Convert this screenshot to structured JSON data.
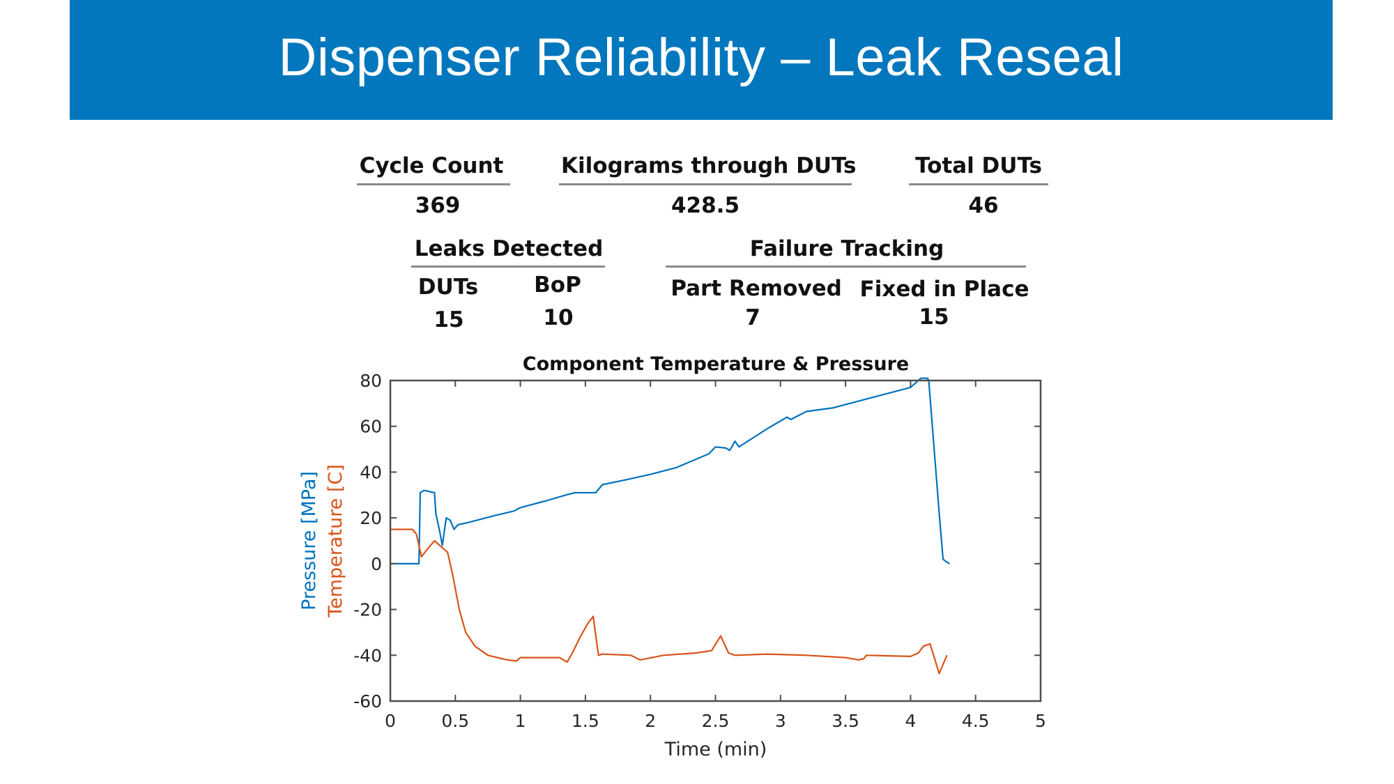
{
  "slide": {
    "title": "Dispenser Reliability – Leak Reseal"
  },
  "stats": {
    "cycle_count": {
      "label": "Cycle Count",
      "value": "369"
    },
    "kilograms": {
      "label": "Kilograms through DUTs",
      "value": "428.5"
    },
    "total_duts": {
      "label": "Total DUTs",
      "value": "46"
    },
    "leaks_detected": {
      "label": "Leaks Detected",
      "duts_label": "DUTs",
      "duts_value": "15",
      "bop_label": "BoP",
      "bop_value": "10"
    },
    "failure_tracking": {
      "label": "Failure Tracking",
      "removed_label": "Part Removed",
      "removed_value": "7",
      "fixed_label": "Fixed in Place",
      "fixed_value": "15"
    }
  },
  "colors": {
    "title_band": "#0277bd",
    "pressure": "#0072bd",
    "temperature": "#d95319",
    "axis": "#4d4d4d"
  },
  "chart_data": {
    "type": "line",
    "title": "Component Temperature & Pressure",
    "xlabel": "Time (min)",
    "ylabel_parts": [
      "Pressure [MPa]",
      "Temperature [C]"
    ],
    "xlim": [
      0,
      5
    ],
    "ylim": [
      -60,
      80
    ],
    "xticks": [
      0,
      0.5,
      1,
      1.5,
      2,
      2.5,
      3,
      3.5,
      4,
      4.5,
      5
    ],
    "xtick_labels": [
      "0",
      "0.5",
      "1",
      "1.5",
      "2",
      "2.5",
      "3",
      "3.5",
      "4",
      "4.5",
      "5"
    ],
    "yticks": [
      80,
      60,
      40,
      20,
      0,
      -20,
      -40,
      -60
    ],
    "ytick_labels": [
      "80",
      "60",
      "40",
      "20",
      "0",
      "-20",
      "-40",
      "-60"
    ],
    "grid": false,
    "box": true,
    "series": [
      {
        "name": "Pressure [MPa]",
        "color": "#0072bd",
        "points": [
          [
            0,
            0
          ],
          [
            0.22,
            0
          ],
          [
            0.23,
            31
          ],
          [
            0.26,
            32
          ],
          [
            0.34,
            31
          ],
          [
            0.35,
            22
          ],
          [
            0.38,
            14
          ],
          [
            0.4,
            8
          ],
          [
            0.43,
            20
          ],
          [
            0.46,
            19
          ],
          [
            0.49,
            15
          ],
          [
            0.52,
            17
          ],
          [
            0.6,
            18
          ],
          [
            0.8,
            21
          ],
          [
            0.95,
            23
          ],
          [
            1.0,
            24.5
          ],
          [
            1.2,
            27.5
          ],
          [
            1.35,
            30
          ],
          [
            1.42,
            31
          ],
          [
            1.58,
            31
          ],
          [
            1.63,
            34.5
          ],
          [
            1.8,
            36.5
          ],
          [
            2.0,
            39
          ],
          [
            2.2,
            42
          ],
          [
            2.45,
            48
          ],
          [
            2.5,
            51
          ],
          [
            2.58,
            50.5
          ],
          [
            2.61,
            49.5
          ],
          [
            2.65,
            53.5
          ],
          [
            2.68,
            51
          ],
          [
            2.9,
            59
          ],
          [
            3.05,
            64
          ],
          [
            3.08,
            63
          ],
          [
            3.2,
            66.5
          ],
          [
            3.4,
            68
          ],
          [
            3.6,
            71
          ],
          [
            3.8,
            74
          ],
          [
            4.0,
            77
          ],
          [
            4.04,
            79
          ],
          [
            4.08,
            81
          ],
          [
            4.13,
            81
          ],
          [
            4.14,
            80
          ],
          [
            4.22,
            22
          ],
          [
            4.25,
            2
          ],
          [
            4.27,
            1
          ],
          [
            4.3,
            0
          ]
        ]
      },
      {
        "name": "Temperature [C]",
        "color": "#d95319",
        "points": [
          [
            0,
            15
          ],
          [
            0.17,
            15
          ],
          [
            0.2,
            13
          ],
          [
            0.24,
            3
          ],
          [
            0.28,
            6
          ],
          [
            0.34,
            10
          ],
          [
            0.4,
            7
          ],
          [
            0.44,
            5
          ],
          [
            0.48,
            -5
          ],
          [
            0.53,
            -20
          ],
          [
            0.58,
            -30
          ],
          [
            0.65,
            -36
          ],
          [
            0.75,
            -40
          ],
          [
            0.9,
            -42
          ],
          [
            0.97,
            -42.5
          ],
          [
            1.0,
            -41
          ],
          [
            1.3,
            -41
          ],
          [
            1.36,
            -43
          ],
          [
            1.4,
            -39
          ],
          [
            1.46,
            -32
          ],
          [
            1.52,
            -26
          ],
          [
            1.56,
            -23
          ],
          [
            1.6,
            -40
          ],
          [
            1.63,
            -39.5
          ],
          [
            1.85,
            -40
          ],
          [
            1.92,
            -42
          ],
          [
            2.1,
            -40
          ],
          [
            2.35,
            -39
          ],
          [
            2.47,
            -38
          ],
          [
            2.54,
            -31.5
          ],
          [
            2.6,
            -39
          ],
          [
            2.65,
            -40
          ],
          [
            2.9,
            -39.5
          ],
          [
            3.2,
            -40
          ],
          [
            3.5,
            -41
          ],
          [
            3.6,
            -42
          ],
          [
            3.64,
            -41.5
          ],
          [
            3.66,
            -40
          ],
          [
            4.0,
            -40.5
          ],
          [
            4.06,
            -39
          ],
          [
            4.1,
            -36
          ],
          [
            4.15,
            -35
          ],
          [
            4.22,
            -48
          ],
          [
            4.25,
            -44
          ],
          [
            4.28,
            -40
          ]
        ]
      }
    ]
  }
}
